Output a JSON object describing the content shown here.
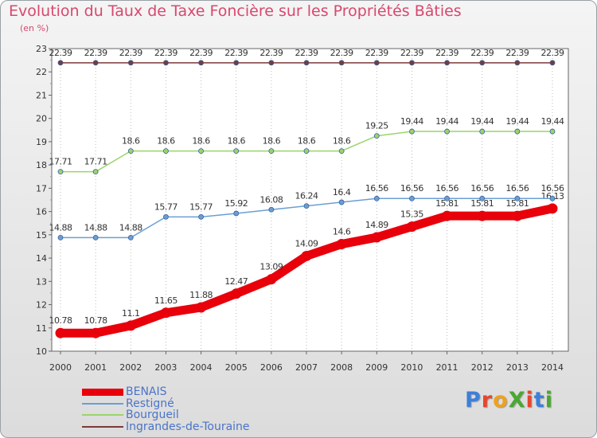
{
  "title": "Evolution du Taux de Taxe Foncière sur les Propriétés Bâties",
  "unit": "(en %)",
  "logo": "ProXiti",
  "chart_data": {
    "type": "line",
    "x": [
      "2000",
      "2001",
      "2002",
      "2003",
      "2004",
      "2005",
      "2006",
      "2007",
      "2008",
      "2009",
      "2010",
      "2011",
      "2012",
      "2013",
      "2014"
    ],
    "ylim": [
      10,
      23
    ],
    "yticks": [
      10,
      11,
      12,
      13,
      14,
      15,
      16,
      17,
      18,
      19,
      20,
      21,
      22,
      23
    ],
    "grid": "vertical-dotted",
    "legend_position": "bottom-left",
    "series": [
      {
        "name": "BENAIS",
        "color": "#e8000b",
        "values": [
          10.78,
          10.78,
          11.1,
          11.65,
          11.88,
          12.47,
          13.09,
          14.09,
          14.6,
          14.89,
          15.35,
          15.81,
          15.81,
          15.81,
          16.13
        ],
        "labels": [
          "10.78",
          "10.78",
          "11.1",
          "11.65",
          "11.88",
          "12.47",
          "13.09",
          "14.09",
          "14.6",
          "14.89",
          "15.35",
          "15.81",
          "15.81",
          "15.81",
          "16.13"
        ]
      },
      {
        "name": "Restigné",
        "color": "#6a9fd4",
        "values": [
          14.88,
          14.88,
          14.88,
          15.77,
          15.77,
          15.92,
          16.08,
          16.24,
          16.4,
          16.56,
          16.56,
          16.56,
          16.56,
          16.56,
          16.56
        ],
        "labels": [
          "14.88",
          "14.88",
          "14.88",
          "15.77",
          "15.77",
          "15.92",
          "16.08",
          "16.24",
          "16.4",
          "16.56",
          "16.56",
          "16.56",
          "16.56",
          "16.56",
          "16.56"
        ]
      },
      {
        "name": "Bourgueil",
        "color": "#9bd46a",
        "values": [
          17.71,
          17.71,
          18.6,
          18.6,
          18.6,
          18.6,
          18.6,
          18.6,
          18.6,
          19.25,
          19.44,
          19.44,
          19.44,
          19.44,
          19.44
        ],
        "labels": [
          "17.71",
          "17.71",
          "18.6",
          "18.6",
          "18.6",
          "18.6",
          "18.6",
          "18.6",
          "18.6",
          "19.25",
          "19.44",
          "19.44",
          "19.44",
          "19.44",
          "19.44"
        ]
      },
      {
        "name": "Ingrandes-de-Touraine",
        "color": "#7b3a3a",
        "values": [
          22.39,
          22.39,
          22.39,
          22.39,
          22.39,
          22.39,
          22.39,
          22.39,
          22.39,
          22.39,
          22.39,
          22.39,
          22.39,
          22.39,
          22.39
        ],
        "labels": [
          "22.39",
          "22.39",
          "22.39",
          "22.39",
          "22.39",
          "22.39",
          "22.39",
          "22.39",
          "22.39",
          "22.39",
          "22.39",
          "22.39",
          "22.39",
          "22.39",
          "22.39"
        ]
      }
    ]
  }
}
